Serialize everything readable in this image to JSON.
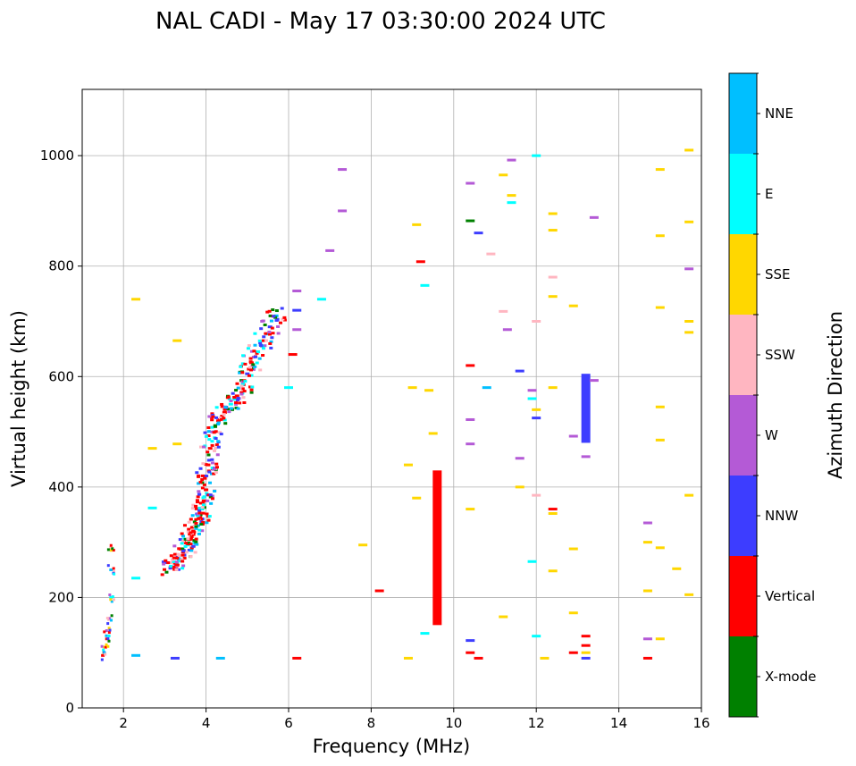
{
  "chart_data": {
    "type": "scatter",
    "title": "NAL CADI - May 17 03:30:00 2024 UTC",
    "xlabel": "Frequency (MHz)",
    "ylabel": "Virtual height (km)",
    "xlim": [
      1.0,
      16.0
    ],
    "ylim": [
      0,
      1120
    ],
    "xticks": [
      2,
      4,
      6,
      8,
      10,
      12,
      14,
      16
    ],
    "yticks": [
      0,
      200,
      400,
      600,
      800,
      1000
    ],
    "grid": true,
    "colorbar": {
      "title": "Azimuth Direction",
      "categories": [
        "X-mode",
        "Vertical",
        "NNW",
        "W",
        "SSW",
        "SSE",
        "E",
        "NNE"
      ],
      "colors": [
        "#008000",
        "#ff0000",
        "#3d3dff",
        "#b45ad6",
        "#ffb6c1",
        "#ffd700",
        "#00ffff",
        "#00bfff"
      ]
    },
    "main_trace": [
      {
        "f": 3.15,
        "h": 255,
        "d": "Vertical"
      },
      {
        "f": 3.25,
        "h": 262,
        "d": "Vertical"
      },
      {
        "f": 3.35,
        "h": 270,
        "d": "NNE"
      },
      {
        "f": 3.45,
        "h": 282,
        "d": "Vertical"
      },
      {
        "f": 3.55,
        "h": 295,
        "d": "E"
      },
      {
        "f": 3.6,
        "h": 305,
        "d": "Vertical"
      },
      {
        "f": 3.7,
        "h": 318,
        "d": "Vertical"
      },
      {
        "f": 3.8,
        "h": 330,
        "d": "NNE"
      },
      {
        "f": 3.85,
        "h": 345,
        "d": "Vertical"
      },
      {
        "f": 3.9,
        "h": 360,
        "d": "E"
      },
      {
        "f": 3.95,
        "h": 375,
        "d": "Vertical"
      },
      {
        "f": 4.0,
        "h": 395,
        "d": "Vertical"
      },
      {
        "f": 4.0,
        "h": 420,
        "d": "NNW"
      },
      {
        "f": 4.05,
        "h": 440,
        "d": "Vertical"
      },
      {
        "f": 4.1,
        "h": 470,
        "d": "Vertical"
      },
      {
        "f": 4.2,
        "h": 500,
        "d": "NNE"
      },
      {
        "f": 4.3,
        "h": 520,
        "d": "Vertical"
      },
      {
        "f": 4.45,
        "h": 535,
        "d": "Vertical"
      },
      {
        "f": 4.6,
        "h": 550,
        "d": "E"
      },
      {
        "f": 4.75,
        "h": 565,
        "d": "Vertical"
      },
      {
        "f": 4.9,
        "h": 585,
        "d": "Vertical"
      },
      {
        "f": 5.0,
        "h": 605,
        "d": "NNW"
      },
      {
        "f": 5.1,
        "h": 625,
        "d": "Vertical"
      },
      {
        "f": 5.25,
        "h": 645,
        "d": "E"
      },
      {
        "f": 5.4,
        "h": 665,
        "d": "Vertical"
      },
      {
        "f": 5.55,
        "h": 690,
        "d": "NNW"
      },
      {
        "f": 5.7,
        "h": 710,
        "d": "NNE"
      }
    ],
    "x_mode_trace": [
      {
        "f": 1.5,
        "h": 95,
        "d": "Vertical"
      },
      {
        "f": 1.55,
        "h": 110,
        "d": "SSE"
      },
      {
        "f": 1.6,
        "h": 125,
        "d": "Vertical"
      },
      {
        "f": 1.6,
        "h": 140,
        "d": "W"
      },
      {
        "f": 1.65,
        "h": 160,
        "d": "SSW"
      },
      {
        "f": 1.7,
        "h": 200,
        "d": "E"
      },
      {
        "f": 1.7,
        "h": 250,
        "d": "NNE"
      },
      {
        "f": 1.7,
        "h": 290,
        "d": "SSW"
      }
    ],
    "vertical_columns": [
      {
        "f": 9.6,
        "h_min": 150,
        "h_max": 430,
        "d": "Vertical"
      },
      {
        "f": 13.2,
        "h_min": 480,
        "h_max": 605,
        "d": "NNW"
      }
    ],
    "scatter_echoes": [
      {
        "f": 15.7,
        "h": 1010,
        "d": "SSE"
      },
      {
        "f": 15.7,
        "h": 880,
        "d": "SSE"
      },
      {
        "f": 15.7,
        "h": 795,
        "d": "W"
      },
      {
        "f": 15.7,
        "h": 700,
        "d": "SSE"
      },
      {
        "f": 15.7,
        "h": 680,
        "d": "SSE"
      },
      {
        "f": 15.7,
        "h": 385,
        "d": "SSE"
      },
      {
        "f": 15.7,
        "h": 205,
        "d": "SSE"
      },
      {
        "f": 15.0,
        "h": 975,
        "d": "SSE"
      },
      {
        "f": 15.0,
        "h": 855,
        "d": "SSE"
      },
      {
        "f": 15.0,
        "h": 725,
        "d": "SSE"
      },
      {
        "f": 15.0,
        "h": 545,
        "d": "SSE"
      },
      {
        "f": 15.0,
        "h": 485,
        "d": "SSE"
      },
      {
        "f": 15.0,
        "h": 290,
        "d": "SSE"
      },
      {
        "f": 15.0,
        "h": 125,
        "d": "SSE"
      },
      {
        "f": 15.4,
        "h": 252,
        "d": "SSE"
      },
      {
        "f": 14.7,
        "h": 335,
        "d": "W"
      },
      {
        "f": 14.7,
        "h": 300,
        "d": "SSE"
      },
      {
        "f": 14.7,
        "h": 212,
        "d": "SSE"
      },
      {
        "f": 14.7,
        "h": 125,
        "d": "W"
      },
      {
        "f": 14.7,
        "h": 90,
        "d": "Vertical"
      },
      {
        "f": 13.4,
        "h": 888,
        "d": "W"
      },
      {
        "f": 13.4,
        "h": 593,
        "d": "W"
      },
      {
        "f": 13.2,
        "h": 455,
        "d": "W"
      },
      {
        "f": 13.2,
        "h": 130,
        "d": "Vertical"
      },
      {
        "f": 13.2,
        "h": 113,
        "d": "Vertical"
      },
      {
        "f": 13.2,
        "h": 100,
        "d": "SSE"
      },
      {
        "f": 13.2,
        "h": 90,
        "d": "NNW"
      },
      {
        "f": 12.9,
        "h": 728,
        "d": "SSE"
      },
      {
        "f": 12.9,
        "h": 492,
        "d": "W"
      },
      {
        "f": 12.9,
        "h": 288,
        "d": "SSE"
      },
      {
        "f": 12.9,
        "h": 172,
        "d": "SSE"
      },
      {
        "f": 12.9,
        "h": 100,
        "d": "Vertical"
      },
      {
        "f": 12.4,
        "h": 895,
        "d": "SSE"
      },
      {
        "f": 12.4,
        "h": 865,
        "d": "SSE"
      },
      {
        "f": 12.4,
        "h": 780,
        "d": "SSW"
      },
      {
        "f": 12.4,
        "h": 745,
        "d": "SSE"
      },
      {
        "f": 12.4,
        "h": 580,
        "d": "SSE"
      },
      {
        "f": 12.4,
        "h": 360,
        "d": "Vertical"
      },
      {
        "f": 12.4,
        "h": 352,
        "d": "SSE"
      },
      {
        "f": 12.4,
        "h": 248,
        "d": "SSE"
      },
      {
        "f": 12.2,
        "h": 90,
        "d": "SSE"
      },
      {
        "f": 12.0,
        "h": 1000,
        "d": "E"
      },
      {
        "f": 12.0,
        "h": 700,
        "d": "SSW"
      },
      {
        "f": 12.0,
        "h": 540,
        "d": "SSE"
      },
      {
        "f": 12.0,
        "h": 525,
        "d": "NNW"
      },
      {
        "f": 12.0,
        "h": 385,
        "d": "SSW"
      },
      {
        "f": 12.0,
        "h": 130,
        "d": "E"
      },
      {
        "f": 11.9,
        "h": 575,
        "d": "W"
      },
      {
        "f": 11.9,
        "h": 560,
        "d": "E"
      },
      {
        "f": 11.9,
        "h": 265,
        "d": "E"
      },
      {
        "f": 11.4,
        "h": 992,
        "d": "W"
      },
      {
        "f": 11.2,
        "h": 965,
        "d": "SSE"
      },
      {
        "f": 11.4,
        "h": 928,
        "d": "SSE"
      },
      {
        "f": 11.4,
        "h": 915,
        "d": "E"
      },
      {
        "f": 11.2,
        "h": 718,
        "d": "SSW"
      },
      {
        "f": 11.3,
        "h": 685,
        "d": "W"
      },
      {
        "f": 11.6,
        "h": 610,
        "d": "NNW"
      },
      {
        "f": 11.6,
        "h": 452,
        "d": "W"
      },
      {
        "f": 11.6,
        "h": 400,
        "d": "SSE"
      },
      {
        "f": 11.2,
        "h": 165,
        "d": "SSE"
      },
      {
        "f": 10.9,
        "h": 822,
        "d": "SSW"
      },
      {
        "f": 10.8,
        "h": 580,
        "d": "NNE"
      },
      {
        "f": 10.6,
        "h": 860,
        "d": "NNW"
      },
      {
        "f": 10.4,
        "h": 950,
        "d": "W"
      },
      {
        "f": 10.4,
        "h": 882,
        "d": "X-mode"
      },
      {
        "f": 10.4,
        "h": 620,
        "d": "Vertical"
      },
      {
        "f": 10.4,
        "h": 522,
        "d": "W"
      },
      {
        "f": 10.4,
        "h": 478,
        "d": "W"
      },
      {
        "f": 10.4,
        "h": 360,
        "d": "SSE"
      },
      {
        "f": 10.4,
        "h": 122,
        "d": "NNW"
      },
      {
        "f": 10.4,
        "h": 100,
        "d": "Vertical"
      },
      {
        "f": 10.6,
        "h": 90,
        "d": "Vertical"
      },
      {
        "f": 9.2,
        "h": 808,
        "d": "Vertical"
      },
      {
        "f": 9.3,
        "h": 765,
        "d": "E"
      },
      {
        "f": 9.1,
        "h": 875,
        "d": "SSE"
      },
      {
        "f": 9.0,
        "h": 580,
        "d": "SSE"
      },
      {
        "f": 9.4,
        "h": 575,
        "d": "SSE"
      },
      {
        "f": 9.5,
        "h": 497,
        "d": "SSE"
      },
      {
        "f": 8.9,
        "h": 440,
        "d": "SSE"
      },
      {
        "f": 9.1,
        "h": 380,
        "d": "SSE"
      },
      {
        "f": 9.3,
        "h": 135,
        "d": "E"
      },
      {
        "f": 8.9,
        "h": 90,
        "d": "SSE"
      },
      {
        "f": 8.2,
        "h": 212,
        "d": "Vertical"
      },
      {
        "f": 7.8,
        "h": 295,
        "d": "SSE"
      },
      {
        "f": 7.3,
        "h": 975,
        "d": "W"
      },
      {
        "f": 7.3,
        "h": 900,
        "d": "W"
      },
      {
        "f": 7.0,
        "h": 828,
        "d": "W"
      },
      {
        "f": 6.8,
        "h": 740,
        "d": "E"
      },
      {
        "f": 6.2,
        "h": 755,
        "d": "W"
      },
      {
        "f": 6.2,
        "h": 720,
        "d": "NNW"
      },
      {
        "f": 6.2,
        "h": 685,
        "d": "W"
      },
      {
        "f": 6.1,
        "h": 640,
        "d": "Vertical"
      },
      {
        "f": 6.0,
        "h": 580,
        "d": "E"
      },
      {
        "f": 6.2,
        "h": 90,
        "d": "Vertical"
      },
      {
        "f": 3.3,
        "h": 665,
        "d": "SSE"
      },
      {
        "f": 3.3,
        "h": 478,
        "d": "SSE"
      },
      {
        "f": 2.7,
        "h": 470,
        "d": "SSE"
      },
      {
        "f": 2.7,
        "h": 362,
        "d": "E"
      },
      {
        "f": 2.3,
        "h": 740,
        "d": "SSE"
      },
      {
        "f": 2.3,
        "h": 235,
        "d": "E"
      },
      {
        "f": 2.3,
        "h": 95,
        "d": "NNE"
      },
      {
        "f": 3.25,
        "h": 90,
        "d": "NNW"
      },
      {
        "f": 4.35,
        "h": 90,
        "d": "NNE"
      }
    ]
  }
}
